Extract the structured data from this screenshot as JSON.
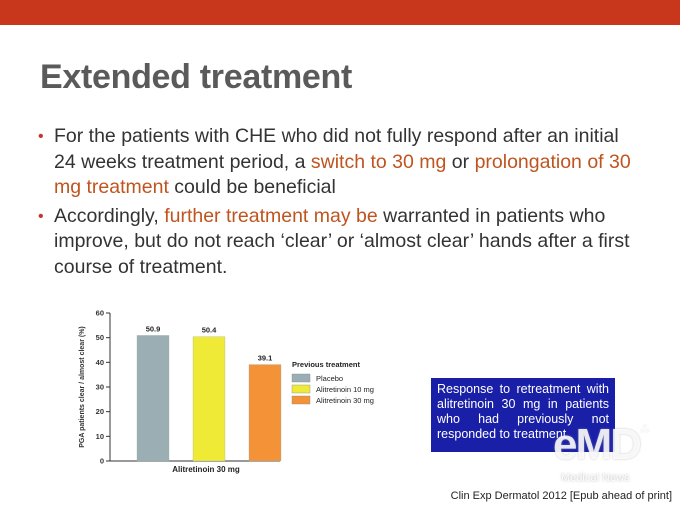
{
  "slide": {
    "title": "Extended treatment",
    "bullets": [
      {
        "marker": "•",
        "parts": [
          {
            "text": "For the patients with CHE who did not fully respond after an initial 24 weeks treatment period, a ",
            "highlight": false
          },
          {
            "text": "switch to 30 mg",
            "highlight": true
          },
          {
            "text": " or ",
            "highlight": false
          },
          {
            "text": "prolongation of 30 mg treatment",
            "highlight": true
          },
          {
            "text": " could be beneficial",
            "highlight": false
          }
        ]
      },
      {
        "marker": "•",
        "parts": [
          {
            "text": "Accordingly, ",
            "highlight": false
          },
          {
            "text": "further treatment may be",
            "highlight": true
          },
          {
            "text": " warranted in patients who improve, but do not reach ‘clear’ or ‘almost clear’ hands after a first course of treatment.",
            "highlight": false
          }
        ]
      }
    ],
    "callout": "Response to retreatment with alitretinoin 30 mg in patients who had previously not responded to treatment",
    "source": "Clin Exp Dermatol 2012 [Epub ahead of print]",
    "logo": {
      "main": "eMD",
      "sub": "Medical News"
    }
  },
  "colors": {
    "topbar": "#c8361c",
    "title": "#5a5a5a",
    "highlight": "#c0541f",
    "callout_bg": "#1a1fa8"
  },
  "chart_data": {
    "type": "bar",
    "categories": [
      "Alitretinoin 30 mg"
    ],
    "series": [
      {
        "name": "Placebo",
        "values": [
          50.9
        ],
        "label": "50.9",
        "color": "#9aaeb4"
      },
      {
        "name": "Alitretinoin 10 mg",
        "values": [
          50.4
        ],
        "label": "50.4",
        "color": "#eeea36"
      },
      {
        "name": "Alitretinoin 30 mg",
        "values": [
          39.1
        ],
        "label": "39.1",
        "color": "#f39237"
      }
    ],
    "ylabel": "PGA patients clear / almost clear (%)",
    "xlabel": "",
    "ylim": [
      0,
      60
    ],
    "yticks": [
      "0",
      "10",
      "20",
      "30",
      "40",
      "50",
      "60"
    ],
    "legend_title": "Previous treatment",
    "legend_position": "right",
    "grid": false
  }
}
